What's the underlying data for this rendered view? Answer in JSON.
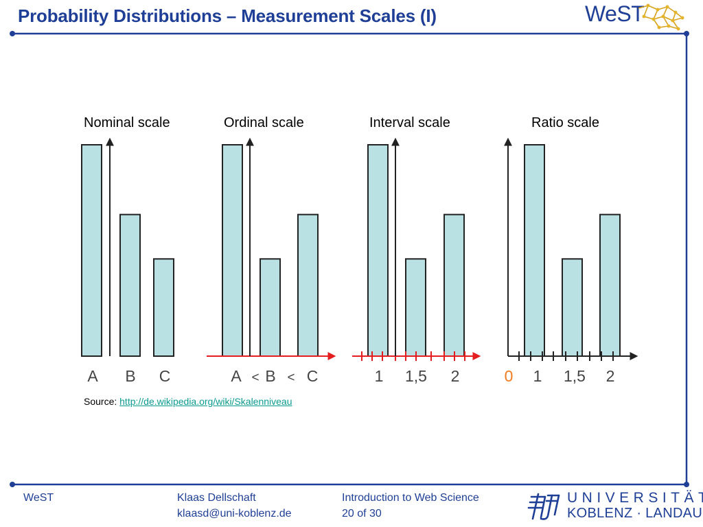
{
  "slide": {
    "title": "Probability Distributions – Measurement Scales (I)",
    "logo_text": "WeST"
  },
  "colors": {
    "title": "#1f3f97",
    "frame": "#1f3f97",
    "bar_fill": "#b9e0e3",
    "bar_stroke": "#222222",
    "red": "#e41e1e",
    "link": "#0a9b8f",
    "zero_label": "#f07b20"
  },
  "chart_data": [
    {
      "type": "bar",
      "title": "Nominal scale",
      "categories": [
        "A",
        "B",
        "C"
      ],
      "values": [
        100,
        67,
        46
      ],
      "tick_labels": [
        "A",
        "B",
        "C"
      ]
    },
    {
      "type": "bar",
      "title": "Ordinal scale",
      "categories": [
        "A",
        "B",
        "C"
      ],
      "values": [
        100,
        46,
        67
      ],
      "tick_labels": [
        "A",
        "<",
        "B",
        "<",
        "C"
      ]
    },
    {
      "type": "bar",
      "title": "Interval scale",
      "categories": [
        "1",
        "1,5",
        "2"
      ],
      "values": [
        100,
        46,
        67
      ],
      "tick_labels": [
        "1",
        "1,5",
        "2"
      ]
    },
    {
      "type": "bar",
      "title": "Ratio scale",
      "categories": [
        "1",
        "1,5",
        "2"
      ],
      "values": [
        100,
        46,
        67
      ],
      "tick_labels": [
        "0",
        "1",
        "1,5",
        "2"
      ]
    }
  ],
  "source": {
    "label": "Source:",
    "url_text": "http://de.wikipedia.org/wiki/Skalenniveau"
  },
  "footer": {
    "org": "WeST",
    "author": "Klaas Dellschaft",
    "email": "klaasd@uni-koblenz.de",
    "course": "Introduction to Web Science",
    "page": "20 of 30",
    "university_line1": "UNIVERSITÄT",
    "university_line2": "KOBLENZ · LANDAU"
  }
}
